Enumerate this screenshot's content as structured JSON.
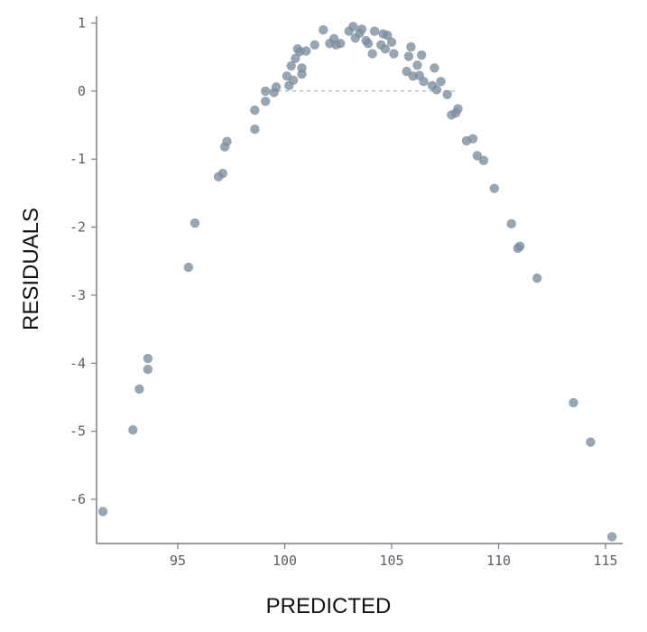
{
  "chart_data": {
    "type": "scatter",
    "title": "",
    "xlabel": "PREDICTED",
    "ylabel": "RESIDUALS",
    "xlim": [
      91.2,
      115.8
    ],
    "ylim": [
      -6.65,
      1.1
    ],
    "xticks": [
      95,
      100,
      105,
      110,
      115
    ],
    "yticks": [
      1,
      0,
      -1,
      -2,
      -3,
      -4,
      -5,
      -6
    ],
    "grid": false,
    "point_color": "#7b8d9e",
    "points": [
      [
        91.5,
        -6.18
      ],
      [
        92.9,
        -4.98
      ],
      [
        93.2,
        -4.38
      ],
      [
        93.6,
        -3.93
      ],
      [
        93.6,
        -4.09
      ],
      [
        95.5,
        -2.59
      ],
      [
        95.8,
        -1.94
      ],
      [
        96.9,
        -1.26
      ],
      [
        97.1,
        -1.21
      ],
      [
        97.2,
        -0.82
      ],
      [
        97.3,
        -0.74
      ],
      [
        98.6,
        -0.56
      ],
      [
        98.6,
        -0.28
      ],
      [
        99.1,
        -0.15
      ],
      [
        99.1,
        0.0
      ],
      [
        99.5,
        -0.02
      ],
      [
        99.6,
        0.06
      ],
      [
        100.1,
        0.22
      ],
      [
        100.2,
        0.08
      ],
      [
        100.3,
        0.37
      ],
      [
        100.4,
        0.16
      ],
      [
        100.5,
        0.48
      ],
      [
        100.6,
        0.62
      ],
      [
        100.7,
        0.58
      ],
      [
        100.8,
        0.34
      ],
      [
        100.8,
        0.25
      ],
      [
        101.0,
        0.59
      ],
      [
        101.4,
        0.68
      ],
      [
        101.8,
        0.9
      ],
      [
        102.1,
        0.7
      ],
      [
        102.3,
        0.77
      ],
      [
        102.4,
        0.68
      ],
      [
        102.6,
        0.7
      ],
      [
        103.0,
        0.88
      ],
      [
        103.2,
        0.95
      ],
      [
        103.3,
        0.78
      ],
      [
        103.5,
        0.85
      ],
      [
        103.6,
        0.91
      ],
      [
        103.8,
        0.74
      ],
      [
        103.9,
        0.7
      ],
      [
        104.1,
        0.55
      ],
      [
        104.2,
        0.88
      ],
      [
        104.5,
        0.68
      ],
      [
        104.6,
        0.84
      ],
      [
        104.7,
        0.62
      ],
      [
        104.8,
        0.82
      ],
      [
        105.0,
        0.72
      ],
      [
        105.1,
        0.55
      ],
      [
        105.7,
        0.29
      ],
      [
        105.8,
        0.51
      ],
      [
        105.9,
        0.65
      ],
      [
        106.0,
        0.22
      ],
      [
        106.2,
        0.38
      ],
      [
        106.3,
        0.23
      ],
      [
        106.4,
        0.53
      ],
      [
        106.5,
        0.14
      ],
      [
        106.9,
        0.08
      ],
      [
        107.0,
        0.34
      ],
      [
        107.1,
        0.02
      ],
      [
        107.3,
        0.14
      ],
      [
        107.6,
        -0.05
      ],
      [
        107.8,
        -0.35
      ],
      [
        108.0,
        -0.32
      ],
      [
        108.1,
        -0.26
      ],
      [
        108.5,
        -0.73
      ],
      [
        108.8,
        -0.7
      ],
      [
        109.0,
        -0.95
      ],
      [
        109.3,
        -1.02
      ],
      [
        109.8,
        -1.43
      ],
      [
        110.6,
        -1.95
      ],
      [
        110.9,
        -2.31
      ],
      [
        111.0,
        -2.28
      ],
      [
        111.8,
        -2.75
      ],
      [
        113.5,
        -4.58
      ],
      [
        114.3,
        -5.16
      ],
      [
        115.3,
        -6.55
      ]
    ]
  }
}
